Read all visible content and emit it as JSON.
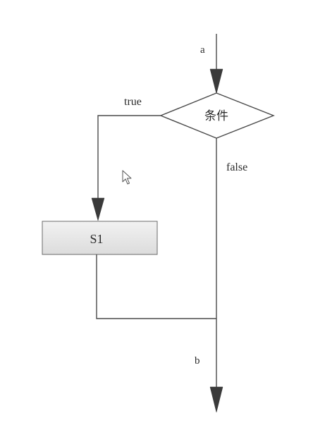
{
  "diagram": {
    "entry_label": "a",
    "exit_label": "b",
    "condition_label": "条件",
    "true_label": "true",
    "false_label": "false",
    "statement_label": "S1"
  }
}
